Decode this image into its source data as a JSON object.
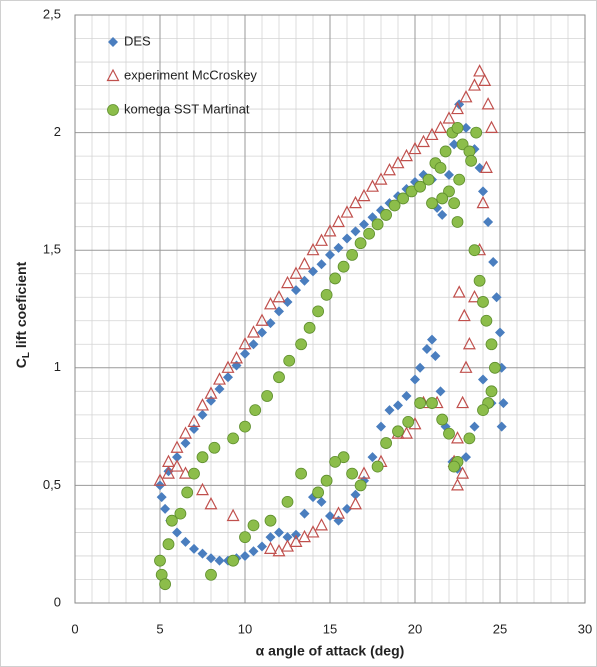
{
  "chart_data": {
    "type": "scatter",
    "xlabel": "α angle  of attack  (deg)",
    "ylabel_parts": [
      "C",
      "L",
      " lift coeficient"
    ],
    "xlim": [
      0,
      30
    ],
    "xticks": [
      0,
      5,
      10,
      15,
      20,
      25,
      30
    ],
    "ylim": [
      0,
      2.5
    ],
    "yticks": [
      0,
      {
        "value": 0.5,
        "label": "0,5"
      },
      1,
      {
        "value": 1.5,
        "label": "1,5"
      },
      2,
      {
        "value": 2.5,
        "label": "2,5"
      }
    ],
    "grid": true,
    "minor_grid": true,
    "legend": "upper left",
    "series": [
      {
        "name": "DES",
        "color": "#4a7ebf",
        "marker": "diamond",
        "x": [
          5.0,
          5.5,
          6,
          6.5,
          7,
          7.5,
          8,
          8.5,
          9,
          9.5,
          10,
          10.5,
          11,
          11.5,
          12,
          12.5,
          13,
          13.5,
          14,
          14.5,
          15,
          15.5,
          16,
          16.5,
          17,
          17.5,
          18,
          18.5,
          19,
          19.5,
          20,
          20.5,
          21,
          21.3,
          21.6,
          22,
          22.3,
          22.6,
          23,
          23.5,
          23.8,
          24,
          24.3,
          24.6,
          24.8,
          25,
          25.1,
          25.2,
          25.1,
          24.5,
          24,
          23.5,
          23,
          22.5,
          22.2,
          21.8,
          21.5,
          21.2,
          21,
          20.7,
          20.3,
          20,
          19.5,
          19,
          18.5,
          18,
          17.5,
          17,
          16.5,
          16,
          15.5,
          15,
          14.5,
          14,
          13.5,
          13,
          12.5,
          12,
          11.5,
          11,
          10.5,
          10,
          9.5,
          9,
          8.5,
          8,
          7.5,
          7,
          6.5,
          6,
          5.6,
          5.3,
          5.1
        ],
        "values": [
          0.5,
          0.56,
          0.62,
          0.68,
          0.74,
          0.8,
          0.86,
          0.91,
          0.96,
          1.01,
          1.06,
          1.1,
          1.15,
          1.19,
          1.24,
          1.28,
          1.33,
          1.37,
          1.41,
          1.44,
          1.48,
          1.51,
          1.55,
          1.58,
          1.61,
          1.64,
          1.67,
          1.7,
          1.73,
          1.76,
          1.79,
          1.82,
          1.8,
          1.68,
          1.65,
          1.82,
          1.95,
          2.12,
          2.02,
          1.93,
          1.85,
          1.75,
          1.62,
          1.45,
          1.3,
          1.15,
          1.0,
          0.85,
          0.75,
          0.85,
          0.95,
          0.75,
          0.62,
          0.57,
          0.6,
          0.75,
          0.9,
          1.05,
          1.12,
          1.08,
          1.0,
          0.95,
          0.88,
          0.84,
          0.82,
          0.75,
          0.62,
          0.52,
          0.46,
          0.4,
          0.35,
          0.37,
          0.43,
          0.45,
          0.38,
          0.29,
          0.28,
          0.3,
          0.28,
          0.24,
          0.22,
          0.2,
          0.19,
          0.18,
          0.18,
          0.19,
          0.21,
          0.23,
          0.26,
          0.3,
          0.35,
          0.4,
          0.45
        ]
      },
      {
        "name": "experiment McCroskey",
        "color": "#c0504d",
        "marker": "triangle",
        "x": [
          5,
          5.5,
          6,
          6.5,
          7,
          7.5,
          8,
          8.5,
          9,
          9.5,
          10,
          10.5,
          11,
          11.5,
          12,
          12.5,
          13,
          13.5,
          14,
          14.5,
          15,
          15.5,
          16,
          16.5,
          17,
          17.5,
          18,
          18.5,
          19,
          19.5,
          20,
          20.5,
          21,
          21.5,
          22,
          22.5,
          23,
          23.5,
          23.8,
          24.1,
          24.3,
          24.5,
          24.2,
          24,
          23.8,
          23.5,
          23.2,
          23,
          22.8,
          22.5,
          22.3,
          22.5,
          22.8,
          22.9,
          22.6,
          21.3,
          20.5,
          20,
          19.5,
          19,
          18,
          17,
          16.5,
          15.5,
          14.5,
          14,
          13.5,
          13,
          12.5,
          12,
          11.5,
          9.3,
          8,
          7.5,
          6.5,
          6,
          5.5
        ],
        "values": [
          0.52,
          0.6,
          0.66,
          0.72,
          0.77,
          0.84,
          0.89,
          0.95,
          1.0,
          1.04,
          1.1,
          1.15,
          1.2,
          1.27,
          1.3,
          1.36,
          1.4,
          1.44,
          1.5,
          1.54,
          1.58,
          1.62,
          1.66,
          1.7,
          1.73,
          1.77,
          1.8,
          1.84,
          1.87,
          1.9,
          1.93,
          1.96,
          1.99,
          2.02,
          2.06,
          2.1,
          2.15,
          2.2,
          2.26,
          2.22,
          2.12,
          2.02,
          1.85,
          1.7,
          1.5,
          1.3,
          1.1,
          1.0,
          0.85,
          0.7,
          0.6,
          0.5,
          0.55,
          1.22,
          1.32,
          0.85,
          0.85,
          0.76,
          0.72,
          0.72,
          0.6,
          0.55,
          0.42,
          0.38,
          0.33,
          0.3,
          0.28,
          0.26,
          0.24,
          0.22,
          0.23,
          0.37,
          0.42,
          0.48,
          0.55,
          0.58,
          0.55
        ]
      },
      {
        "name": "komega SST Martinat",
        "color": "#8cbd4a",
        "marker": "circle",
        "x": [
          5,
          5.1,
          5.3,
          5.5,
          5.7,
          6.2,
          6.6,
          7,
          7.5,
          8.2,
          9.3,
          10,
          10.6,
          11.3,
          12,
          12.6,
          13.3,
          13.8,
          14.3,
          14.8,
          15.3,
          15.8,
          16.3,
          16.8,
          17.3,
          17.8,
          18.3,
          18.8,
          19.3,
          19.8,
          20.3,
          20.8,
          21.2,
          21.5,
          21.8,
          22.2,
          22.5,
          22.8,
          23.2,
          23.6,
          23.3,
          22.6,
          22.3,
          22,
          21.6,
          21,
          22.5,
          23.5,
          23.8,
          24,
          24.2,
          24.5,
          24.7,
          24.5,
          24.3,
          24,
          23.2,
          22.5,
          22.3,
          22,
          21.6,
          21,
          20.3,
          19.6,
          19,
          18.3,
          17.8,
          16.8,
          16.3,
          15.8,
          15.3,
          14.8,
          14.3,
          13.3,
          12.5,
          11.5,
          10.5,
          10,
          9.3,
          8
        ],
        "values": [
          0.18,
          0.12,
          0.08,
          0.25,
          0.35,
          0.38,
          0.47,
          0.55,
          0.62,
          0.66,
          0.7,
          0.75,
          0.82,
          0.88,
          0.96,
          1.03,
          1.1,
          1.17,
          1.24,
          1.31,
          1.38,
          1.43,
          1.48,
          1.53,
          1.57,
          1.61,
          1.65,
          1.69,
          1.72,
          1.75,
          1.77,
          1.8,
          1.87,
          1.85,
          1.92,
          2.0,
          2.02,
          1.95,
          1.92,
          2.0,
          1.88,
          1.8,
          1.7,
          1.75,
          1.72,
          1.7,
          1.62,
          1.5,
          1.37,
          1.28,
          1.2,
          1.1,
          1.0,
          0.9,
          0.85,
          0.82,
          0.7,
          0.6,
          0.58,
          0.72,
          0.78,
          0.85,
          0.85,
          0.77,
          0.73,
          0.68,
          0.58,
          0.5,
          0.55,
          0.62,
          0.6,
          0.52,
          0.47,
          0.55,
          0.43,
          0.35,
          0.33,
          0.28,
          0.18,
          0.12
        ]
      }
    ]
  }
}
